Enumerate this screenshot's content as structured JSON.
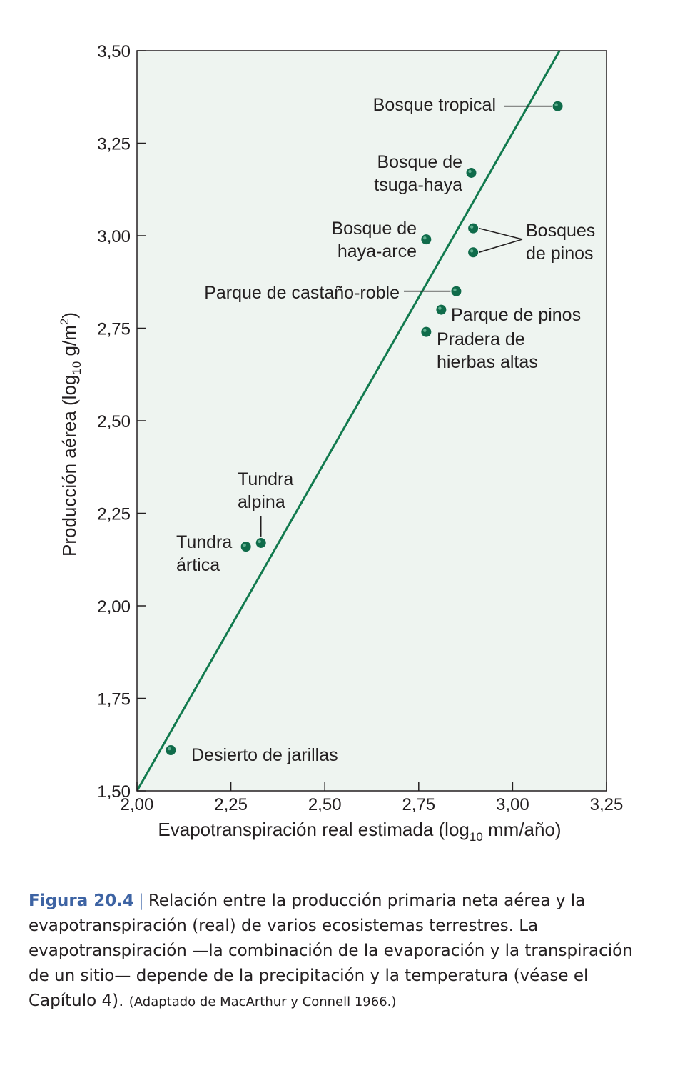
{
  "chart_data": {
    "type": "scatter",
    "title": "",
    "xlabel": "Evapotranspiración real estimada (log",
    "xlabel_sub": "10",
    "xlabel_tail": " mm/año)",
    "ylabel": "Producción aérea (log",
    "ylabel_sub": "10",
    "ylabel_mid": " g/m",
    "ylabel_sup": "2",
    "ylabel_tail": ")",
    "xlim": [
      2.0,
      3.25
    ],
    "ylim": [
      1.5,
      3.5
    ],
    "x_ticks": [
      "2,00",
      "2,25",
      "2,50",
      "2,75",
      "3,00",
      "3,25"
    ],
    "y_ticks": [
      "1,50",
      "1,75",
      "2,00",
      "2,25",
      "2,50",
      "2,75",
      "3,00",
      "3,25",
      "3,50"
    ],
    "grid": false,
    "fit_line": {
      "x": [
        2.0,
        3.125
      ],
      "y": [
        1.5,
        3.5
      ]
    },
    "points": [
      {
        "x": 3.12,
        "y": 3.35
      },
      {
        "x": 2.89,
        "y": 3.17
      },
      {
        "x": 2.77,
        "y": 2.99
      },
      {
        "x": 2.895,
        "y": 3.02
      },
      {
        "x": 2.895,
        "y": 2.955
      },
      {
        "x": 2.85,
        "y": 2.85
      },
      {
        "x": 2.81,
        "y": 2.8
      },
      {
        "x": 2.77,
        "y": 2.74
      },
      {
        "x": 2.33,
        "y": 2.17
      },
      {
        "x": 2.29,
        "y": 2.16
      },
      {
        "x": 2.09,
        "y": 1.61
      }
    ],
    "annotations": [
      {
        "lines": [
          "Bosque tropical"
        ]
      },
      {
        "lines": [
          "Bosque de",
          "tsuga-haya"
        ]
      },
      {
        "lines": [
          "Bosque de",
          "haya-arce"
        ]
      },
      {
        "lines": [
          "Bosques",
          "de pinos"
        ]
      },
      {
        "lines": [
          "Parque de castaño-roble"
        ]
      },
      {
        "lines": [
          "Parque de pinos"
        ]
      },
      {
        "lines": [
          "Pradera de",
          "hierbas altas"
        ]
      },
      {
        "lines": [
          "Tundra",
          "alpina"
        ]
      },
      {
        "lines": [
          "Tundra",
          "ártica"
        ]
      },
      {
        "lines": [
          "Desierto de jarillas"
        ]
      }
    ],
    "colors": {
      "plot_background": "#eef4f0",
      "line": "#117a4e",
      "point": "#0f6b4a",
      "point_highlight": "#5fae8e",
      "axis": "#231f20"
    }
  },
  "caption": {
    "figure_label": "Figura 20.4",
    "separator": "|",
    "text": "Relación entre la producción primaria neta aérea y la evapotranspiración (real) de varios ecosistemas terrestres. La evapotranspiración —la combinación de la evaporación y la transpiración de un sitio— depende de la precipitación y la temperatura (véase el Capítulo 4).",
    "source": "(Adaptado de MacArthur y Connell 1966.)"
  }
}
